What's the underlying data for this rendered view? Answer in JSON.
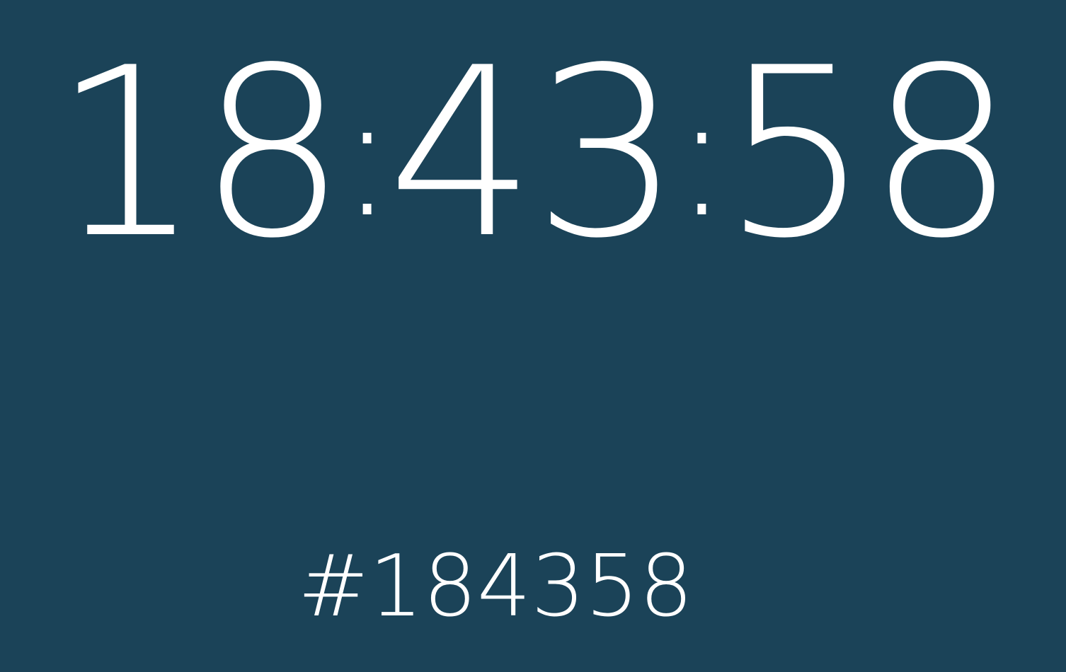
{
  "clock": {
    "hours": "18",
    "minutes": "43",
    "seconds": "58",
    "separator": ":"
  },
  "color_code": "#184358",
  "colors": {
    "background": "#1b4358",
    "text": "#ffffff"
  }
}
